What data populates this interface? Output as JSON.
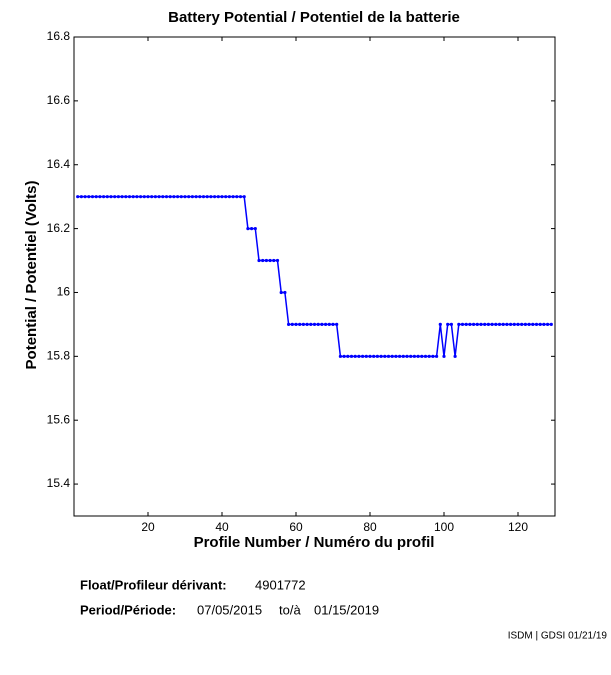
{
  "chart_data": {
    "type": "line",
    "title": "Battery Potential / Potentiel de la batterie",
    "xlabel": "Profile Number / Numéro du profil",
    "ylabel": "Potential / Potentiel (Volts)",
    "xlim": [
      0,
      130
    ],
    "ylim": [
      15.3,
      16.8
    ],
    "xticks": [
      20,
      40,
      60,
      80,
      100,
      120
    ],
    "yticks": [
      15.4,
      15.6,
      15.8,
      16,
      16.2,
      16.4,
      16.6,
      16.8
    ],
    "x": [
      1,
      2,
      3,
      4,
      5,
      6,
      7,
      8,
      9,
      10,
      11,
      12,
      13,
      14,
      15,
      16,
      17,
      18,
      19,
      20,
      21,
      22,
      23,
      24,
      25,
      26,
      27,
      28,
      29,
      30,
      31,
      32,
      33,
      34,
      35,
      36,
      37,
      38,
      39,
      40,
      41,
      42,
      43,
      44,
      45,
      46,
      47,
      48,
      49,
      50,
      51,
      52,
      53,
      54,
      55,
      56,
      57,
      58,
      59,
      60,
      61,
      62,
      63,
      64,
      65,
      66,
      67,
      68,
      69,
      70,
      71,
      72,
      73,
      74,
      75,
      76,
      77,
      78,
      79,
      80,
      81,
      82,
      83,
      84,
      85,
      86,
      87,
      88,
      89,
      90,
      91,
      92,
      93,
      94,
      95,
      96,
      97,
      98,
      99,
      100,
      101,
      102,
      103,
      104,
      105,
      106,
      107,
      108,
      109,
      110,
      111,
      112,
      113,
      114,
      115,
      116,
      117,
      118,
      119,
      120,
      121,
      122,
      123,
      124,
      125,
      126,
      127,
      128,
      129
    ],
    "series": [
      {
        "color": "#0000ff",
        "values": [
          16.3,
          16.3,
          16.3,
          16.3,
          16.3,
          16.3,
          16.3,
          16.3,
          16.3,
          16.3,
          16.3,
          16.3,
          16.3,
          16.3,
          16.3,
          16.3,
          16.3,
          16.3,
          16.3,
          16.3,
          16.3,
          16.3,
          16.3,
          16.3,
          16.3,
          16.3,
          16.3,
          16.3,
          16.3,
          16.3,
          16.3,
          16.3,
          16.3,
          16.3,
          16.3,
          16.3,
          16.3,
          16.3,
          16.3,
          16.3,
          16.3,
          16.3,
          16.3,
          16.3,
          16.3,
          16.3,
          16.2,
          16.2,
          16.2,
          16.1,
          16.1,
          16.1,
          16.1,
          16.1,
          16.1,
          16.0,
          16.0,
          15.9,
          15.9,
          15.9,
          15.9,
          15.9,
          15.9,
          15.9,
          15.9,
          15.9,
          15.9,
          15.9,
          15.9,
          15.9,
          15.9,
          15.8,
          15.8,
          15.8,
          15.8,
          15.8,
          15.8,
          15.8,
          15.8,
          15.8,
          15.8,
          15.8,
          15.8,
          15.8,
          15.8,
          15.8,
          15.8,
          15.8,
          15.8,
          15.8,
          15.8,
          15.8,
          15.8,
          15.8,
          15.8,
          15.8,
          15.8,
          15.8,
          15.9,
          15.8,
          15.9,
          15.9,
          15.8,
          15.9,
          15.9,
          15.9,
          15.9,
          15.9,
          15.9,
          15.9,
          15.9,
          15.9,
          15.9,
          15.9,
          15.9,
          15.9,
          15.9,
          15.9,
          15.9,
          15.9,
          15.9,
          15.9,
          15.9,
          15.9,
          15.9,
          15.9,
          15.9,
          15.9,
          15.9
        ]
      }
    ]
  },
  "footer": {
    "float_label": "Float/Profileur dérivant:",
    "float_id": "4901772",
    "period_label": "Period/Période:",
    "start": "07/05/2015",
    "to": "to/à",
    "end": "01/15/2019",
    "credit": "ISDM | GDSI 01/21/19"
  }
}
